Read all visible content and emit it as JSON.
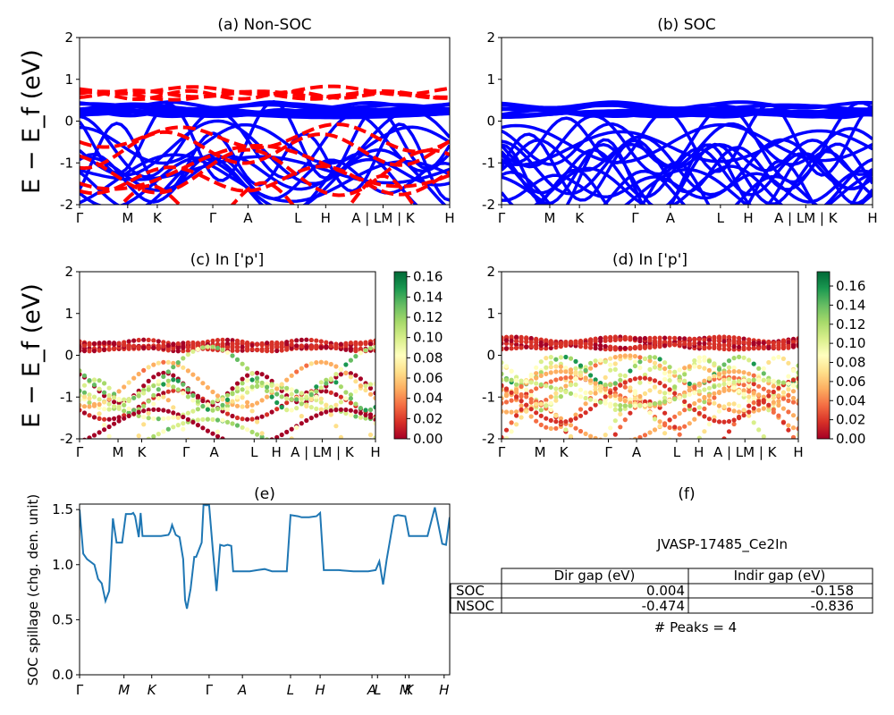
{
  "figure": {
    "energy_axis_label": "E − E_f (eV)",
    "kpath_labels": [
      "Γ",
      "M",
      "K",
      "Γ",
      "A",
      "L",
      "H",
      "A | LM | K",
      "H"
    ],
    "kpath_labels_spillage": [
      "Γ",
      "M",
      "K",
      "Γ",
      "A",
      "L",
      "H",
      "AL",
      "MK",
      "H"
    ]
  },
  "panels": {
    "a": {
      "title": "(a) Non-SOC"
    },
    "b": {
      "title": "(b) SOC"
    },
    "c": {
      "title": "(c)  In ['p']",
      "colorbar_ticks": [
        "0.00",
        "0.02",
        "0.04",
        "0.06",
        "0.08",
        "0.10",
        "0.12",
        "0.14",
        "0.16"
      ]
    },
    "d": {
      "title": "(d) In ['p']",
      "colorbar_ticks": [
        "0.00",
        "0.02",
        "0.04",
        "0.06",
        "0.08",
        "0.10",
        "0.12",
        "0.14",
        "0.16"
      ]
    },
    "e": {
      "title": "(e)",
      "ylabel": "SOC spillage (chg. den. unit)"
    },
    "f": {
      "title": "(f)",
      "material": "JVASP-17485_Ce2In",
      "col_headers": [
        "Dir gap (eV)",
        "Indir gap (eV)"
      ],
      "rows": [
        {
          "label": "SOC",
          "dir": "0.004",
          "indir": "-0.158"
        },
        {
          "label": "NSOC",
          "dir": "-0.474",
          "indir": "-0.836"
        }
      ],
      "peaks_text": "# Peaks = 4"
    }
  },
  "colors": {
    "nonsoc_band": "#ff0000",
    "soc_band": "#0000ff",
    "spillage_line": "#1f77b4",
    "colormap": "RdYlGn"
  },
  "chart_data": [
    {
      "type": "line",
      "panel": "a",
      "title": "(a) Non-SOC",
      "ylabel": "E − E_f (eV)",
      "ylim": [
        -2,
        2
      ],
      "yticks": [
        -2,
        -1,
        0,
        1,
        2
      ],
      "xticks": [
        "Γ",
        "M",
        "K",
        "Γ",
        "A",
        "L",
        "H",
        "A | LM | K",
        "H"
      ],
      "series": [
        {
          "line_style": "dashed",
          "color": "red"
        },
        {
          "line_style": "solid",
          "color": "blue"
        }
      ]
    },
    {
      "type": "line",
      "panel": "b",
      "title": "(b) SOC",
      "ylim": [
        -2,
        2
      ],
      "yticks": [
        -2,
        -1,
        0,
        1,
        2
      ],
      "xticks": [
        "Γ",
        "M",
        "K",
        "Γ",
        "A",
        "L",
        "H",
        "A | LM | K",
        "H"
      ],
      "series": [
        {
          "line_style": "solid",
          "color": "blue"
        }
      ]
    },
    {
      "type": "scatter",
      "panel": "c",
      "title": "(c)  In ['p']",
      "ylabel": "E − E_f (eV)",
      "ylim": [
        -2,
        2
      ],
      "colorbar_range": [
        0,
        0.165
      ]
    },
    {
      "type": "scatter",
      "panel": "d",
      "title": "(d) In ['p']",
      "ylim": [
        -2,
        2
      ],
      "colorbar_range": [
        0,
        0.175
      ]
    },
    {
      "type": "line",
      "panel": "e",
      "title": "(e)",
      "ylabel": "SOC spillage (chg. den. unit)",
      "ylim": [
        0,
        1.55
      ],
      "yticks": [
        0.0,
        0.5,
        1.0,
        1.5
      ],
      "xticks": [
        "Γ",
        "M",
        "K",
        "Γ",
        "A",
        "L",
        "H",
        "A",
        "L",
        "M",
        "K",
        "H"
      ],
      "x_ticks_frac": [
        0,
        0.12,
        0.195,
        0.35,
        0.44,
        0.57,
        0.65,
        0.79,
        0.805,
        0.88,
        0.89,
        0.985
      ],
      "series": [
        {
          "x": [
            0.0,
            0.01,
            0.02,
            0.04,
            0.05,
            0.06,
            0.07,
            0.08,
            0.09,
            0.1,
            0.115,
            0.125,
            0.14,
            0.145,
            0.15,
            0.16,
            0.165,
            0.17,
            0.18,
            0.2,
            0.22,
            0.24,
            0.245,
            0.25,
            0.26,
            0.27,
            0.28,
            0.285,
            0.29,
            0.3,
            0.31,
            0.315,
            0.33,
            0.335,
            0.34,
            0.35,
            0.36,
            0.37,
            0.38,
            0.39,
            0.4,
            0.41,
            0.415,
            0.43,
            0.44,
            0.46,
            0.48,
            0.5,
            0.52,
            0.54,
            0.55,
            0.56,
            0.57,
            0.59,
            0.6,
            0.62,
            0.64,
            0.65,
            0.66,
            0.7,
            0.74,
            0.78,
            0.8,
            0.81,
            0.82,
            0.83,
            0.85,
            0.86,
            0.88,
            0.89,
            0.9,
            0.91,
            0.94,
            0.96,
            0.98,
            0.99,
            1.0
          ],
          "y": [
            1.5,
            1.1,
            1.05,
            1.0,
            0.87,
            0.83,
            0.67,
            0.76,
            1.42,
            1.2,
            1.2,
            1.46,
            1.46,
            1.47,
            1.44,
            1.25,
            1.47,
            1.26,
            1.26,
            1.26,
            1.26,
            1.27,
            1.3,
            1.36,
            1.27,
            1.25,
            1.05,
            0.68,
            0.6,
            0.78,
            1.07,
            1.07,
            1.2,
            1.55,
            1.54,
            1.54,
            1.14,
            0.76,
            1.18,
            1.17,
            1.18,
            1.17,
            0.94,
            0.94,
            0.94,
            0.94,
            0.95,
            0.96,
            0.94,
            0.94,
            0.94,
            0.94,
            1.45,
            1.44,
            1.43,
            1.43,
            1.44,
            1.47,
            0.95,
            0.95,
            0.94,
            0.94,
            0.95,
            1.03,
            0.82,
            1.05,
            1.44,
            1.45,
            1.44,
            1.26,
            1.26,
            1.26,
            1.26,
            1.52,
            1.19,
            1.18,
            1.43
          ]
        }
      ]
    },
    {
      "type": "table",
      "panel": "f",
      "title": "(f)",
      "caption": "JVASP-17485_Ce2In",
      "columns": [
        "",
        "Dir gap (eV)",
        "Indir gap (eV)"
      ],
      "rows": [
        [
          "SOC",
          "0.004",
          "-0.158"
        ],
        [
          "NSOC",
          "-0.474",
          "-0.836"
        ]
      ],
      "note": "# Peaks = 4"
    }
  ]
}
